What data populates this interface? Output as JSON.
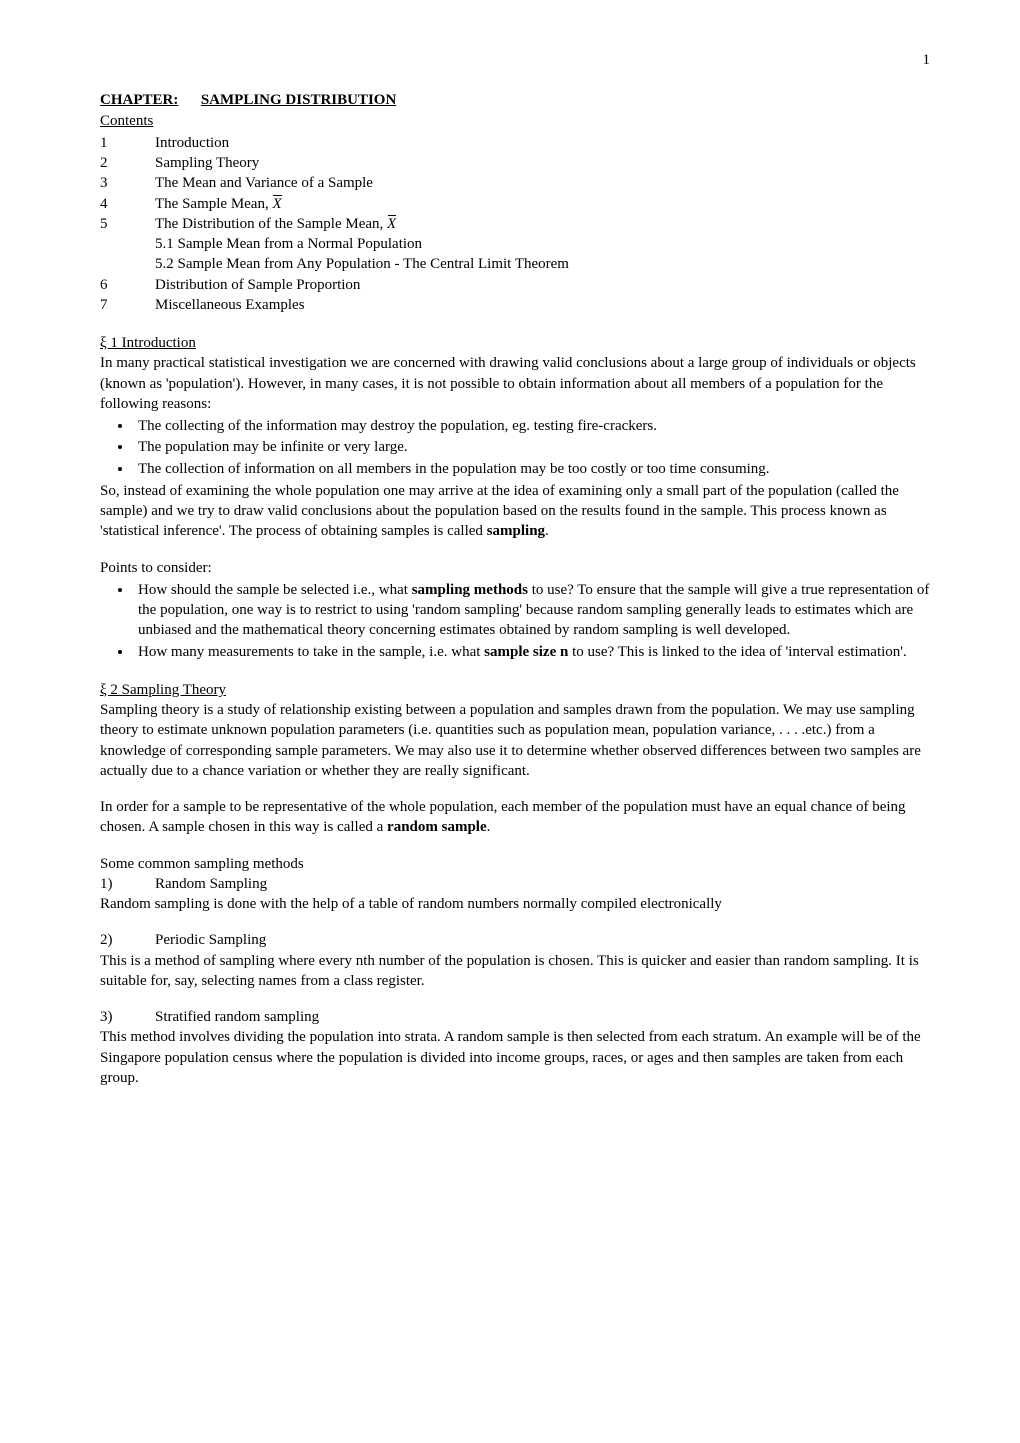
{
  "page_number": "1",
  "chapter_heading_prefix": "CHAPTER:",
  "chapter_heading_title": "SAMPLING DISTRIBUTION",
  "contents_label": "Contents",
  "toc": [
    {
      "num": "1",
      "title": "Introduction"
    },
    {
      "num": "2",
      "title": "Sampling Theory"
    },
    {
      "num": "3",
      "title": "The Mean and Variance of a Sample"
    },
    {
      "num": "4",
      "title_pre": "The Sample Mean, ",
      "xbar": "X"
    },
    {
      "num": "5",
      "title_pre": "The Distribution of the Sample Mean, ",
      "xbar": "X"
    }
  ],
  "toc_sub": [
    "5.1  Sample Mean from a Normal Population",
    "5.2  Sample Mean from Any Population - The Central Limit Theorem"
  ],
  "toc_tail": [
    {
      "num": "6",
      "title": "Distribution of Sample Proportion"
    },
    {
      "num": "7",
      "title": "Miscellaneous Examples"
    }
  ],
  "s1_heading": "ξ 1  Introduction",
  "s1_p1": "In many practical statistical investigation we are concerned with drawing valid conclusions about a large group of individuals or objects (known as 'population').  However, in many cases, it is not possible to obtain information about all members of a population for the following reasons:",
  "s1_bullets": [
    "The collecting of the information may destroy the population, eg. testing fire-crackers.",
    "The population may be infinite or very large.",
    "The collection of information on all members in the population may be too costly or too time consuming."
  ],
  "s1_p2_pre": "So, instead of examining the whole population one may arrive at the idea of examining only a small part of the population (called the sample) and we try to draw valid conclusions about the population based on the results found in the sample.  This process known as 'statistical inference'.  The process of obtaining samples is called ",
  "s1_p2_bold": "sampling",
  "s1_p2_post": ".",
  "s1_points_label": "Points to consider:",
  "s1_points": [
    {
      "pre": "How should the sample be selected i.e., what ",
      "bold": "sampling methods",
      "post": " to use?  To ensure that the sample will give a true representation of the population, one way is to restrict to using 'random sampling' because random sampling generally leads to estimates which are unbiased and the mathematical theory concerning estimates obtained by random sampling is well developed."
    },
    {
      "pre": "How many measurements to take in the sample, i.e. what ",
      "bold": "sample size n",
      "post": " to use?  This is linked to the idea of 'interval estimation'."
    }
  ],
  "s2_heading": "ξ 2  Sampling Theory",
  "s2_p1": "Sampling theory is a study of relationship existing between a population and samples drawn from the population.  We may use sampling theory to estimate unknown population parameters (i.e. quantities such as population mean, population variance, . . . .etc.)  from a knowledge of corresponding sample parameters.  We may also use it to determine whether observed differences between two samples are actually due to a chance variation or whether they are really significant.",
  "s2_p2_pre": "In order for a sample to be representative of the whole population, each member of the population must have an equal chance of being chosen.  A sample chosen in this way is called a ",
  "s2_p2_bold": "random sample",
  "s2_p2_post": ".",
  "methods_label": "Some common sampling methods",
  "methods": [
    {
      "num": "1)",
      "title": "Random Sampling",
      "body": "Random sampling is done with the help of a table of random numbers normally compiled electronically"
    },
    {
      "num": "2)",
      "title": "Periodic Sampling",
      "body": "This is a method of sampling where every nth number of the population is chosen.  This is quicker and easier than random sampling.  It is suitable for, say, selecting names from a class register."
    },
    {
      "num": "3)",
      "title": "Stratified random sampling",
      "body": "This method involves dividing the population into strata.  A random sample is then selected from each stratum.  An example will be of the Singapore population census where the population is divided into income groups, races, or ages and then samples are taken from each group."
    }
  ]
}
